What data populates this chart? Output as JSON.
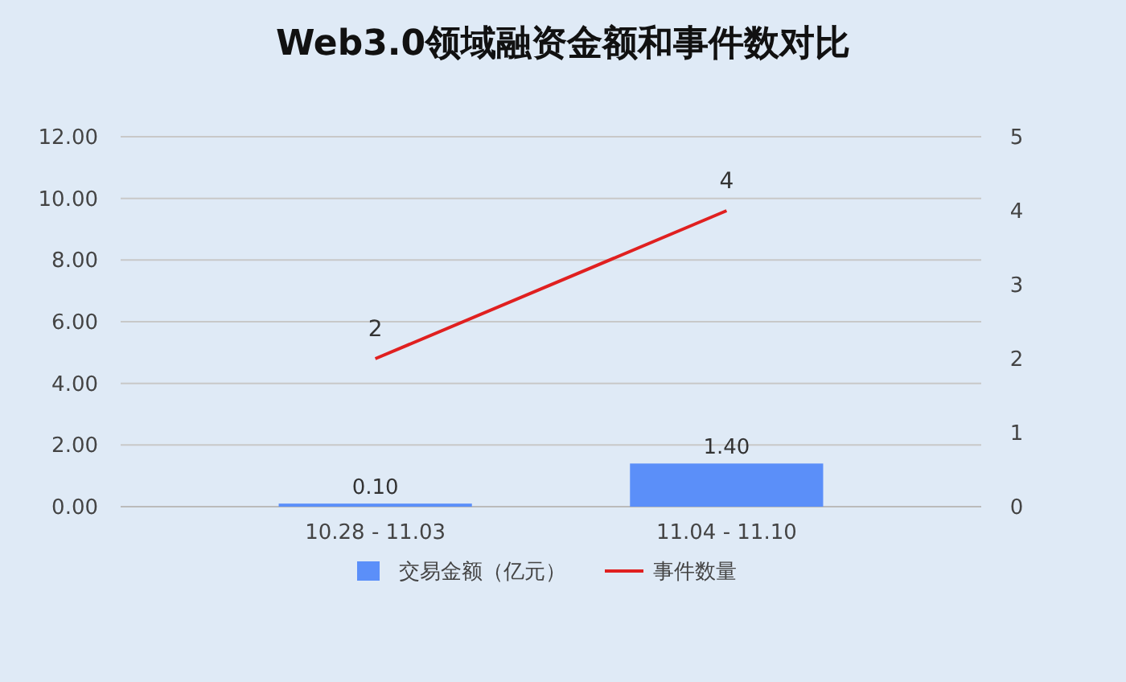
{
  "chart_data": {
    "type": "bar",
    "title": "Web3.0领域融资金额和事件数对比",
    "categories": [
      "10.28 - 11.03",
      "11.04 - 11.10"
    ],
    "series": [
      {
        "name": "交易金额（亿元）",
        "color": "#5b8ff9",
        "values": [
          0.1,
          1.4
        ],
        "value_labels": [
          "0.10",
          "1.40"
        ]
      },
      {
        "name": "事件数量",
        "type": "line",
        "axis": "y2",
        "color": "#e02020",
        "values": [
          2,
          4
        ],
        "value_labels": [
          "2",
          "4"
        ]
      }
    ],
    "ylim": [
      0,
      12
    ],
    "yticks": [
      {
        "value": 0,
        "label": "0.00"
      },
      {
        "value": 2,
        "label": "2.00"
      },
      {
        "value": 4,
        "label": "4.00"
      },
      {
        "value": 6,
        "label": "6.00"
      },
      {
        "value": 8,
        "label": "8.00"
      },
      {
        "value": 10,
        "label": "10.00"
      },
      {
        "value": 12,
        "label": "12.00"
      }
    ],
    "y2lim": [
      0,
      5
    ],
    "y2ticks": [
      0,
      1,
      2,
      3,
      4,
      5
    ],
    "grid": "y",
    "legend": "bottom",
    "marker": "none",
    "line_style": "solid"
  }
}
